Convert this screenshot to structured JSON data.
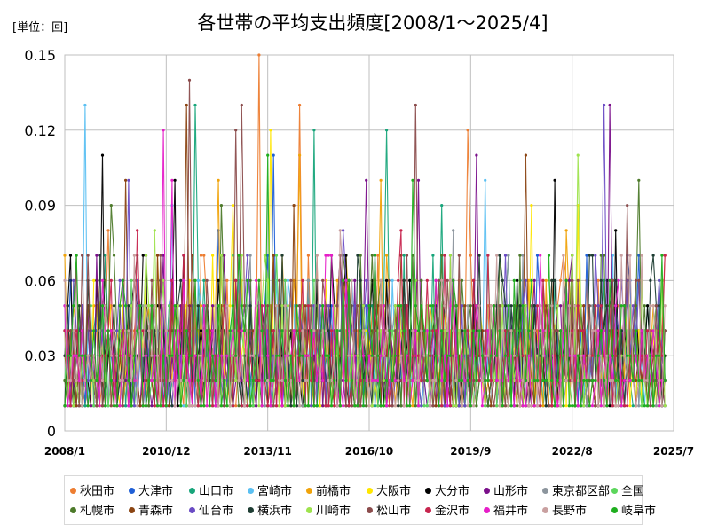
{
  "chart_data": {
    "type": "line",
    "title": "各世帯の平均支出頻度[2008/1～2025/4]",
    "unit_label": "[単位：回]",
    "y_ticks": [
      "0",
      "0.03",
      "0.06",
      "0.09",
      "0.12",
      "0.15"
    ],
    "ylim": [
      0,
      0.15
    ],
    "x_ticks": [
      "2008/1",
      "2010/12",
      "2013/11",
      "2016/10",
      "2019/9",
      "2022/8",
      "2025/7"
    ],
    "x_tick_values": [
      "2008-01",
      "2010-12",
      "2013-11",
      "2016-10",
      "2019-09",
      "2022-08",
      "2025-07"
    ],
    "x_range": [
      "2008-01",
      "2025-07"
    ],
    "last_month": "2025-04",
    "grid": true,
    "legend_position": "bottom",
    "series": [
      {
        "name": "秋田市",
        "color": "#ed7d31",
        "base": 0.03,
        "peaks": [
          [
            "2009-04",
            0.08
          ],
          [
            "2013-08",
            0.15
          ],
          [
            "2014-10",
            0.13
          ],
          [
            "2019-08",
            0.12
          ],
          [
            "2025-04",
            0.07
          ]
        ]
      },
      {
        "name": "大津市",
        "color": "#1f5fd6",
        "base": 0.028,
        "peaks": [
          [
            "2012-06",
            0.08
          ],
          [
            "2014-01",
            0.11
          ],
          [
            "2021-03",
            0.06
          ]
        ]
      },
      {
        "name": "山口市",
        "color": "#17a57a",
        "base": 0.03,
        "peaks": [
          [
            "2011-10",
            0.13
          ],
          [
            "2015-03",
            0.12
          ],
          [
            "2017-04",
            0.12
          ],
          [
            "2018-11",
            0.09
          ]
        ]
      },
      {
        "name": "宮崎市",
        "color": "#5bc0f2",
        "base": 0.028,
        "peaks": [
          [
            "2008-08",
            0.13
          ],
          [
            "2011-02",
            0.09
          ],
          [
            "2020-02",
            0.1
          ]
        ]
      },
      {
        "name": "前橋市",
        "color": "#f0a30a",
        "base": 0.03,
        "peaks": [
          [
            "2012-06",
            0.1
          ],
          [
            "2014-10",
            0.11
          ],
          [
            "2017-02",
            0.1
          ],
          [
            "2022-06",
            0.08
          ]
        ]
      },
      {
        "name": "大阪市",
        "color": "#ffe600",
        "base": 0.028,
        "peaks": [
          [
            "2012-11",
            0.09
          ],
          [
            "2013-12",
            0.12
          ],
          [
            "2021-06",
            0.09
          ],
          [
            "2022-10",
            0.09
          ]
        ]
      },
      {
        "name": "大分市",
        "color": "#000000",
        "base": 0.03,
        "peaks": [
          [
            "2009-02",
            0.11
          ],
          [
            "2011-03",
            0.1
          ],
          [
            "2022-02",
            0.1
          ],
          [
            "2023-11",
            0.08
          ],
          [
            "2025-03",
            0.06
          ]
        ]
      },
      {
        "name": "山形市",
        "color": "#7a0f8a",
        "base": 0.03,
        "peaks": [
          [
            "2016-09",
            0.1
          ],
          [
            "2018-03",
            0.1
          ],
          [
            "2019-11",
            0.11
          ],
          [
            "2023-09",
            0.13
          ]
        ]
      },
      {
        "name": "東京都区部",
        "color": "#8c959d",
        "base": 0.025,
        "peaks": [
          [
            "2013-05",
            0.07
          ],
          [
            "2019-03",
            0.08
          ]
        ]
      },
      {
        "name": "全国",
        "color": "#5cd65c",
        "base": 0.025,
        "peaks": [
          [
            "2021-02",
            0.06
          ],
          [
            "2024-04",
            0.05
          ]
        ]
      },
      {
        "name": "札幌市",
        "color": "#4d7a2a",
        "base": 0.03,
        "peaks": [
          [
            "2009-05",
            0.09
          ],
          [
            "2012-07",
            0.09
          ],
          [
            "2024-07",
            0.1
          ]
        ]
      },
      {
        "name": "青森市",
        "color": "#8b4513",
        "base": 0.03,
        "peaks": [
          [
            "2009-10",
            0.1
          ],
          [
            "2011-07",
            0.13
          ],
          [
            "2014-08",
            0.09
          ],
          [
            "2021-04",
            0.11
          ]
        ]
      },
      {
        "name": "仙台市",
        "color": "#6a4bc4",
        "base": 0.028,
        "peaks": [
          [
            "2009-11",
            0.1
          ],
          [
            "2016-01",
            0.08
          ],
          [
            "2023-07",
            0.13
          ]
        ]
      },
      {
        "name": "横浜市",
        "color": "#1e3d33",
        "base": 0.028,
        "peaks": [
          [
            "2014-04",
            0.07
          ],
          [
            "2020-08",
            0.06
          ]
        ]
      },
      {
        "name": "川崎市",
        "color": "#9ee34d",
        "base": 0.028,
        "peaks": [
          [
            "2010-08",
            0.08
          ],
          [
            "2022-10",
            0.11
          ]
        ]
      },
      {
        "name": "松山市",
        "color": "#8b4c4c",
        "base": 0.03,
        "peaks": [
          [
            "2011-08",
            0.14
          ],
          [
            "2012-12",
            0.12
          ],
          [
            "2013-02",
            0.13
          ],
          [
            "2018-02",
            0.13
          ],
          [
            "2024-03",
            0.09
          ]
        ]
      },
      {
        "name": "金沢市",
        "color": "#c7254e",
        "base": 0.028,
        "peaks": [
          [
            "2010-02",
            0.08
          ],
          [
            "2017-09",
            0.08
          ]
        ]
      },
      {
        "name": "福井市",
        "color": "#e61ec8",
        "base": 0.028,
        "peaks": [
          [
            "2010-11",
            0.12
          ],
          [
            "2011-02",
            0.1
          ]
        ]
      },
      {
        "name": "長野市",
        "color": "#c9a0a0",
        "base": 0.028,
        "peaks": [
          [
            "2015-12",
            0.08
          ],
          [
            "2020-06",
            0.07
          ]
        ]
      },
      {
        "name": "岐阜市",
        "color": "#1fae1f",
        "base": 0.028,
        "peaks": [
          [
            "2013-11",
            0.11
          ],
          [
            "2018-01",
            0.1
          ]
        ]
      }
    ]
  }
}
